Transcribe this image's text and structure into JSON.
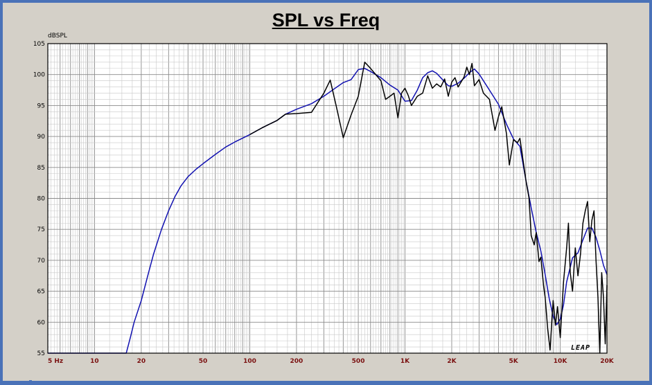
{
  "title": "SPL vs Freq",
  "brand": "LEAP",
  "chart_data": {
    "type": "line",
    "title": "SPL vs Freq",
    "ylabel": "dBSPL",
    "xlabel": "",
    "x_scale": "log",
    "xlim": [
      5,
      20000
    ],
    "ylim": [
      55,
      105
    ],
    "grid": true,
    "y_ticks": [
      55,
      60,
      65,
      70,
      75,
      80,
      85,
      90,
      95,
      100,
      105
    ],
    "x_ticks": [
      {
        "value": 5,
        "label": "5  Hz"
      },
      {
        "value": 10,
        "label": "10"
      },
      {
        "value": 20,
        "label": "20"
      },
      {
        "value": 50,
        "label": "50"
      },
      {
        "value": 100,
        "label": "100"
      },
      {
        "value": 200,
        "label": "200"
      },
      {
        "value": 500,
        "label": "500"
      },
      {
        "value": 1000,
        "label": "1K"
      },
      {
        "value": 2000,
        "label": "2K"
      },
      {
        "value": 5000,
        "label": "5K"
      },
      {
        "value": 10000,
        "label": "10K"
      },
      {
        "value": 20000,
        "label": "20K"
      }
    ],
    "series": [
      {
        "color": "#1010b0",
        "points": [
          [
            5,
            55
          ],
          [
            16,
            55
          ],
          [
            17,
            57.5
          ],
          [
            18,
            60
          ],
          [
            20,
            63.5
          ],
          [
            22,
            67.5
          ],
          [
            24,
            71
          ],
          [
            27,
            75
          ],
          [
            30,
            78
          ],
          [
            33,
            80.3
          ],
          [
            36,
            82
          ],
          [
            40,
            83.5
          ],
          [
            45,
            84.7
          ],
          [
            50,
            85.6
          ],
          [
            60,
            87.1
          ],
          [
            70,
            88.3
          ],
          [
            80,
            89.1
          ],
          [
            100,
            90.3
          ],
          [
            120,
            91.4
          ],
          [
            150,
            92.6
          ],
          [
            170,
            93.6
          ],
          [
            200,
            94.4
          ],
          [
            250,
            95.3
          ],
          [
            300,
            96.5
          ],
          [
            350,
            97.7
          ],
          [
            400,
            98.7
          ],
          [
            450,
            99.2
          ],
          [
            500,
            100.8
          ],
          [
            550,
            101
          ],
          [
            600,
            100.5
          ],
          [
            700,
            99.5
          ],
          [
            800,
            98.3
          ],
          [
            900,
            97.5
          ],
          [
            1000,
            95.7
          ],
          [
            1100,
            95.8
          ],
          [
            1200,
            97.5
          ],
          [
            1300,
            99.5
          ],
          [
            1400,
            100.3
          ],
          [
            1500,
            100.6
          ],
          [
            1600,
            100.2
          ],
          [
            1700,
            99.5
          ],
          [
            1800,
            98.8
          ],
          [
            1900,
            98.2
          ],
          [
            2000,
            98.1
          ],
          [
            2200,
            98.6
          ],
          [
            2400,
            99.4
          ],
          [
            2600,
            100.3
          ],
          [
            2800,
            100.9
          ],
          [
            3000,
            100.1
          ],
          [
            3500,
            97.5
          ],
          [
            4000,
            95.2
          ],
          [
            4500,
            92
          ],
          [
            5000,
            89.6
          ],
          [
            5500,
            88.4
          ],
          [
            6000,
            83
          ],
          [
            6500,
            78.5
          ],
          [
            7000,
            74.5
          ],
          [
            7500,
            71.5
          ],
          [
            8000,
            67.7
          ],
          [
            8500,
            63.8
          ],
          [
            9000,
            61
          ],
          [
            9500,
            59.6
          ],
          [
            10000,
            60.5
          ],
          [
            10500,
            62.8
          ],
          [
            11000,
            66.5
          ],
          [
            12000,
            70.4
          ],
          [
            13000,
            71.2
          ],
          [
            14000,
            73.3
          ],
          [
            15000,
            75.2
          ],
          [
            16000,
            75.2
          ],
          [
            17000,
            73.7
          ],
          [
            18000,
            71.6
          ],
          [
            19000,
            69.2
          ],
          [
            20000,
            67.7
          ]
        ]
      },
      {
        "color": "#000000",
        "points": [
          [
            100,
            90.3
          ],
          [
            120,
            91.4
          ],
          [
            150,
            92.6
          ],
          [
            170,
            93.6
          ],
          [
            200,
            93.7
          ],
          [
            250,
            93.9
          ],
          [
            300,
            97
          ],
          [
            330,
            99.1
          ],
          [
            360,
            95
          ],
          [
            400,
            89.8
          ],
          [
            450,
            93.5
          ],
          [
            500,
            96.5
          ],
          [
            550,
            102
          ],
          [
            600,
            101
          ],
          [
            700,
            99
          ],
          [
            750,
            96
          ],
          [
            800,
            96.5
          ],
          [
            850,
            97
          ],
          [
            900,
            93
          ],
          [
            950,
            97
          ],
          [
            1000,
            97.8
          ],
          [
            1050,
            96.6
          ],
          [
            1100,
            95
          ],
          [
            1200,
            96.5
          ],
          [
            1300,
            97
          ],
          [
            1400,
            99.8
          ],
          [
            1500,
            97.8
          ],
          [
            1600,
            98.5
          ],
          [
            1700,
            98
          ],
          [
            1800,
            99.3
          ],
          [
            1900,
            96.5
          ],
          [
            2000,
            98.8
          ],
          [
            2100,
            99.5
          ],
          [
            2200,
            98
          ],
          [
            2400,
            99.6
          ],
          [
            2500,
            101.2
          ],
          [
            2600,
            100
          ],
          [
            2700,
            101.8
          ],
          [
            2800,
            98.2
          ],
          [
            3000,
            99.2
          ],
          [
            3200,
            97
          ],
          [
            3500,
            96
          ],
          [
            3800,
            91
          ],
          [
            4000,
            93.2
          ],
          [
            4200,
            94.8
          ],
          [
            4500,
            90.5
          ],
          [
            4700,
            85.4
          ],
          [
            5000,
            89.5
          ],
          [
            5300,
            89
          ],
          [
            5500,
            89.7
          ],
          [
            6000,
            83
          ],
          [
            6300,
            80
          ],
          [
            6500,
            74
          ],
          [
            6800,
            72.5
          ],
          [
            7000,
            74.5
          ],
          [
            7300,
            69.8
          ],
          [
            7500,
            70.5
          ],
          [
            7800,
            66
          ],
          [
            8000,
            64
          ],
          [
            8300,
            59
          ],
          [
            8600,
            55.5
          ],
          [
            9000,
            63.5
          ],
          [
            9300,
            59.5
          ],
          [
            9600,
            62.5
          ],
          [
            10000,
            57.5
          ],
          [
            10500,
            66.5
          ],
          [
            11000,
            72
          ],
          [
            11300,
            76
          ],
          [
            11600,
            68
          ],
          [
            12000,
            65
          ],
          [
            12500,
            72
          ],
          [
            13000,
            67.5
          ],
          [
            13500,
            71
          ],
          [
            14000,
            76
          ],
          [
            14500,
            78
          ],
          [
            15000,
            79.5
          ],
          [
            15500,
            73
          ],
          [
            16000,
            76.5
          ],
          [
            16500,
            78
          ],
          [
            17000,
            70
          ],
          [
            17500,
            64
          ],
          [
            18000,
            55
          ],
          [
            18500,
            68
          ],
          [
            19000,
            64
          ],
          [
            19500,
            56.5
          ],
          [
            20000,
            66
          ]
        ]
      }
    ]
  }
}
